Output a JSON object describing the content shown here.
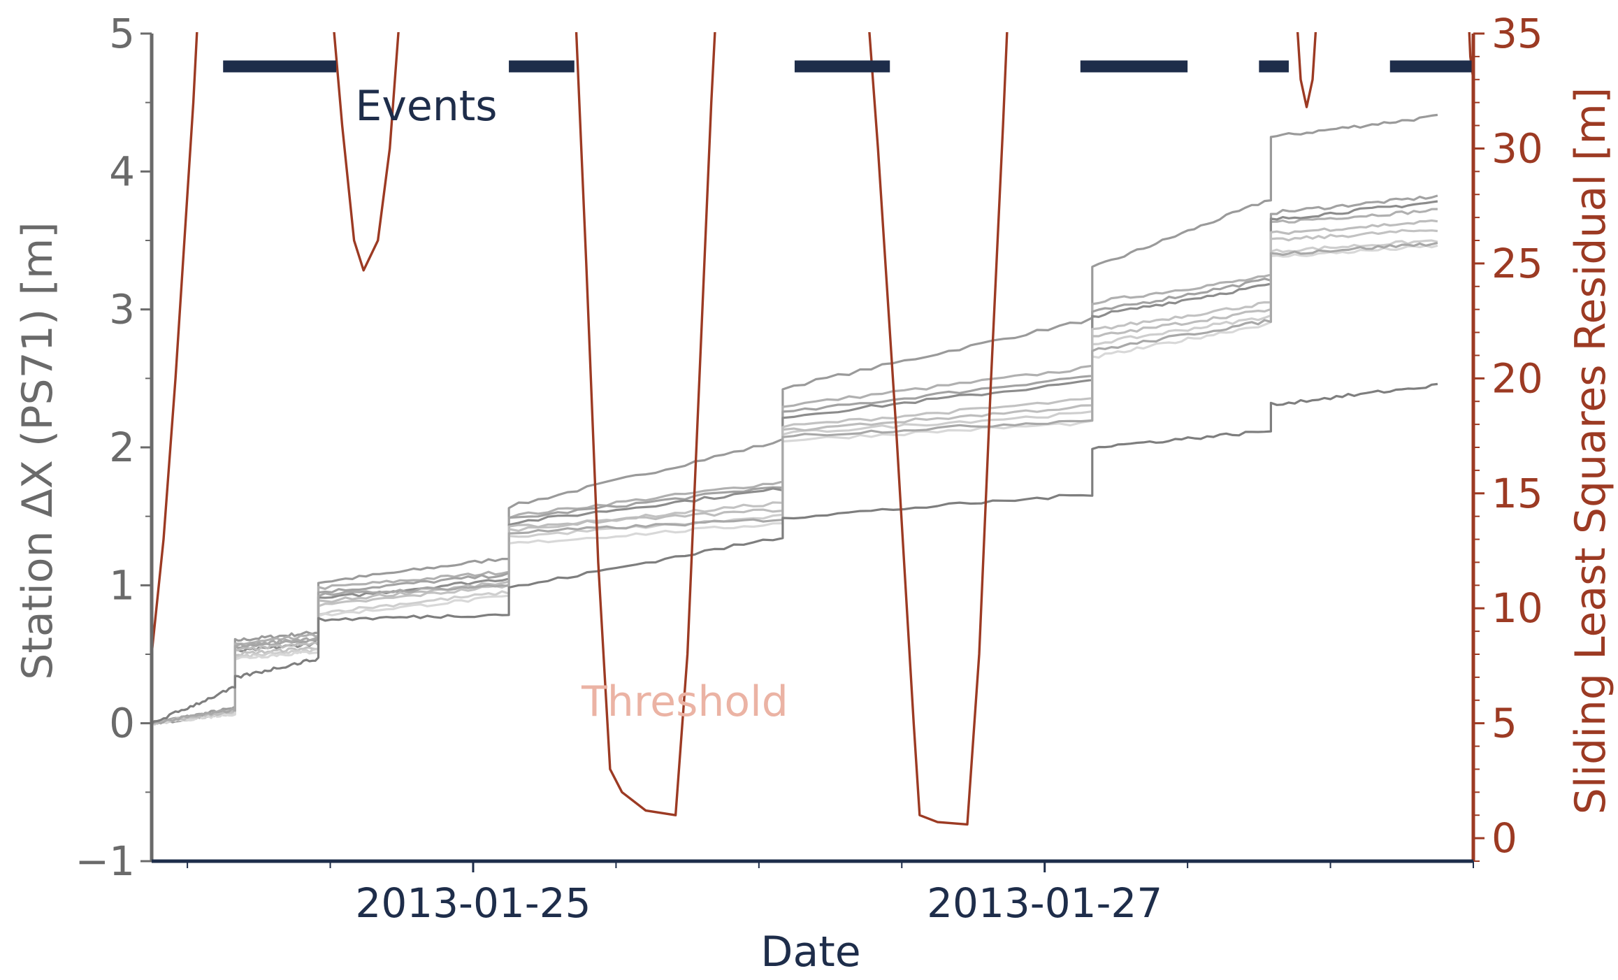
{
  "colors": {
    "left_axis": "#6a6a6a",
    "right_axis": "#9c3a23",
    "date_axis": "#1e2d4a",
    "events": "#1e2d4a",
    "threshold_label": "#ebb3a4"
  },
  "chart_data": {
    "type": "line",
    "xlabel": "Date",
    "ylabel_left": "Station ΔX (PS71) [m]",
    "ylabel_right": "Sliding Least Squares Residual [m]",
    "ylim_left": [
      -1,
      5
    ],
    "ylim_right": [
      -1,
      35
    ],
    "yticks_left": [
      "−1",
      "0",
      "1",
      "2",
      "3",
      "4",
      "5"
    ],
    "yticks_right": [
      "0",
      "5",
      "10",
      "15",
      "20",
      "25",
      "30",
      "35"
    ],
    "xlim": [
      "2013-01-23 21:00",
      "2013-01-28 12:00"
    ],
    "xtick_labels": [
      "2013-01-25",
      "2013-01-27"
    ],
    "annotations": {
      "events_label": "Events",
      "threshold_label": "Threshold"
    },
    "events": [
      [
        "2013-01-24 03:00",
        "2013-01-24 12:30"
      ],
      [
        "2013-01-25 03:00",
        "2013-01-25 08:30"
      ],
      [
        "2013-01-26 03:00",
        "2013-01-26 11:00"
      ],
      [
        "2013-01-27 03:00",
        "2013-01-27 12:00"
      ],
      [
        "2013-01-27 18:00",
        "2013-01-27 20:30"
      ],
      [
        "2013-01-28 05:00",
        "2013-01-28 12:00"
      ]
    ],
    "residual": [
      [
        "2013-01-23 21:00",
        8
      ],
      [
        "2013-01-23 22:00",
        13
      ],
      [
        "2013-01-23 23:00",
        20
      ],
      [
        "2013-01-24 00:00",
        28
      ],
      [
        "2013-01-24 00:30",
        32
      ],
      [
        "2013-01-24 01:00",
        37
      ],
      [
        "2013-01-24 12:00",
        37
      ],
      [
        "2013-01-24 13:00",
        31
      ],
      [
        "2013-01-24 14:00",
        26
      ],
      [
        "2013-01-24 14:48",
        24.7
      ],
      [
        "2013-01-24 16:00",
        26
      ],
      [
        "2013-01-24 17:00",
        30
      ],
      [
        "2013-01-24 18:00",
        37
      ],
      [
        "2013-01-25 08:30",
        37
      ],
      [
        "2013-01-25 09:30",
        25
      ],
      [
        "2013-01-25 10:30",
        12
      ],
      [
        "2013-01-25 11:30",
        3
      ],
      [
        "2013-01-25 12:30",
        2
      ],
      [
        "2013-01-25 14:30",
        1.2
      ],
      [
        "2013-01-25 17:00",
        1.0
      ],
      [
        "2013-01-25 18:00",
        8
      ],
      [
        "2013-01-25 19:00",
        20
      ],
      [
        "2013-01-25 20:00",
        32
      ],
      [
        "2013-01-25 20:30",
        37
      ],
      [
        "2013-01-26 09:00",
        37
      ],
      [
        "2013-01-26 10:00",
        30
      ],
      [
        "2013-01-26 11:30",
        18
      ],
      [
        "2013-01-26 13:00",
        5
      ],
      [
        "2013-01-26 13:30",
        1
      ],
      [
        "2013-01-26 15:00",
        0.7
      ],
      [
        "2013-01-26 17:30",
        0.6
      ],
      [
        "2013-01-26 18:30",
        8
      ],
      [
        "2013-01-26 19:30",
        20
      ],
      [
        "2013-01-26 20:30",
        31
      ],
      [
        "2013-01-26 21:00",
        37
      ],
      [
        "2013-01-27 21:00",
        37
      ],
      [
        "2013-01-27 21:30",
        33
      ],
      [
        "2013-01-27 22:00",
        31.8
      ],
      [
        "2013-01-27 22:30",
        33
      ],
      [
        "2013-01-27 23:00",
        37
      ],
      [
        "2013-01-28 11:30",
        37
      ],
      [
        "2013-01-28 11:45",
        34
      ],
      [
        "2013-01-28 12:00",
        33
      ]
    ],
    "steps": [
      "2013-01-24 04:00",
      "2013-01-24 11:00",
      "2013-01-25 03:00",
      "2013-01-26 02:00",
      "2013-01-27 04:00",
      "2013-01-27 19:00",
      "2013-01-28 09:00"
    ],
    "series": [
      {
        "color": "#9a9a9a",
        "values": [
          0,
          0.11,
          0.6,
          0.66,
          1.02,
          1.2,
          1.57,
          2.05,
          2.43,
          2.93,
          3.3,
          3.8,
          4.25,
          4.4
        ]
      },
      {
        "color": "#b0b0b0",
        "values": [
          0,
          0.09,
          0.57,
          0.64,
          0.98,
          1.1,
          1.5,
          1.75,
          2.3,
          2.58,
          3.05,
          3.24,
          3.63,
          3.72
        ]
      },
      {
        "color": "#a2a2a2",
        "values": [
          0,
          0.1,
          0.55,
          0.61,
          0.95,
          1.08,
          1.48,
          1.72,
          2.25,
          2.52,
          2.98,
          3.22,
          3.7,
          3.82
        ]
      },
      {
        "color": "#8c8c8c",
        "values": [
          0,
          0.08,
          0.52,
          0.58,
          0.9,
          1.05,
          1.45,
          1.7,
          2.22,
          2.48,
          2.95,
          3.18,
          3.65,
          3.78
        ]
      },
      {
        "color": "#c2c2c2",
        "values": [
          0,
          0.08,
          0.5,
          0.55,
          0.85,
          1.0,
          1.4,
          1.6,
          2.15,
          2.35,
          2.85,
          3.05,
          3.5,
          3.58
        ]
      },
      {
        "color": "#cecece",
        "values": [
          0,
          0.07,
          0.48,
          0.53,
          0.8,
          0.95,
          1.35,
          1.5,
          2.1,
          2.25,
          2.75,
          2.95,
          3.42,
          3.5
        ]
      },
      {
        "color": "#d8d8d8",
        "values": [
          0,
          0.07,
          0.47,
          0.52,
          0.78,
          0.92,
          1.3,
          1.45,
          2.05,
          2.18,
          2.65,
          2.9,
          3.38,
          3.46
        ]
      },
      {
        "color": "#bdbdbd",
        "values": [
          0,
          0.09,
          0.53,
          0.58,
          0.88,
          1.02,
          1.42,
          1.55,
          2.12,
          2.3,
          2.8,
          3.0,
          3.55,
          3.64
        ]
      },
      {
        "color": "#a8a8a8",
        "values": [
          0,
          0.1,
          0.56,
          0.62,
          0.93,
          1.0,
          1.38,
          1.48,
          2.08,
          2.2,
          2.7,
          2.92,
          3.4,
          3.48
        ]
      },
      {
        "color": "#7e7e7e",
        "values": [
          0,
          0.26,
          0.33,
          0.47,
          0.75,
          0.79,
          0.98,
          1.35,
          1.49,
          1.66,
          2.0,
          2.12,
          2.31,
          2.45
        ]
      }
    ],
    "grid": false,
    "legend": "none"
  }
}
